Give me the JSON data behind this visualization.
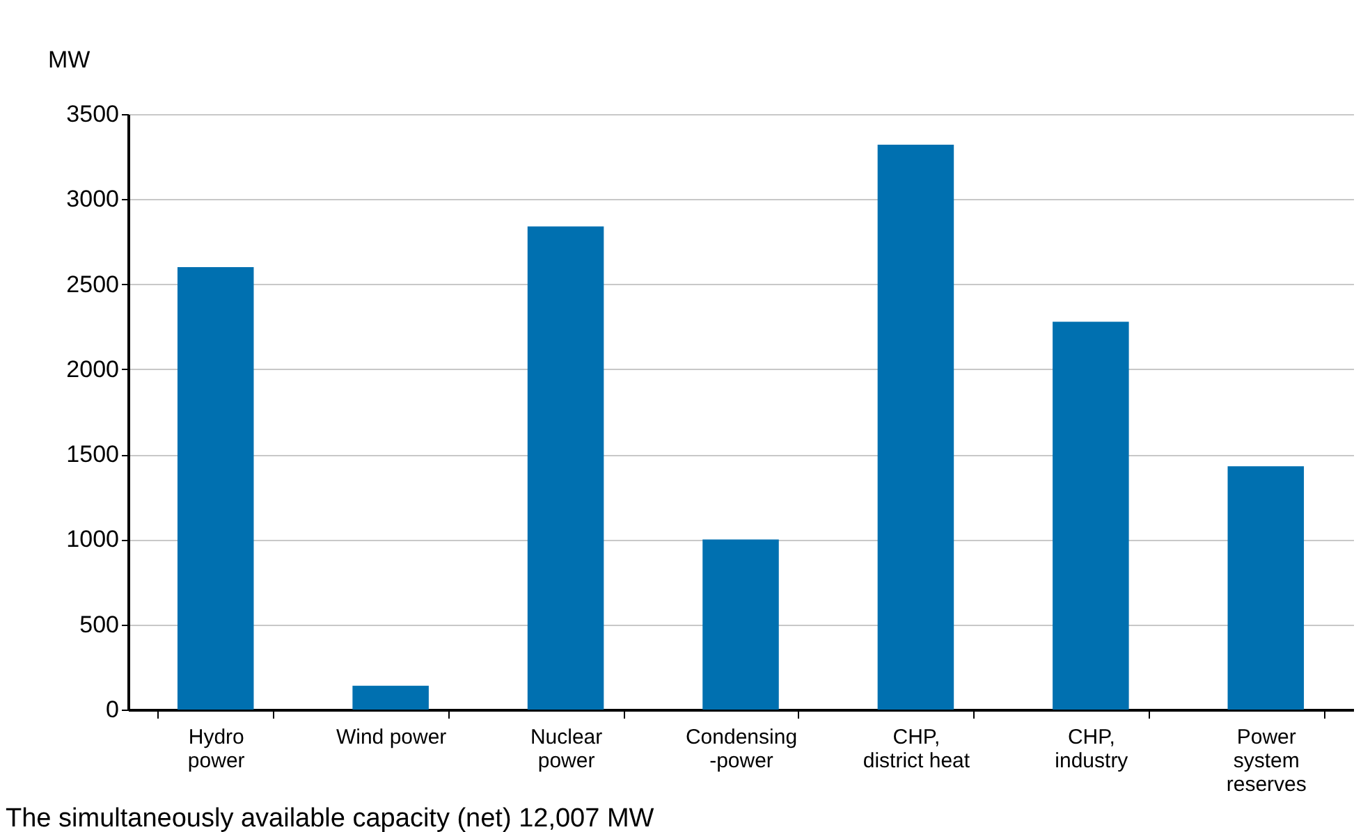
{
  "chart_data": {
    "type": "bar",
    "ylabel": "MW",
    "categories": [
      "Hydro\npower",
      "Wind power",
      "Nuclear\npower",
      "Condensing\n-power",
      "CHP,\ndistrict heat",
      "CHP,\nindustry",
      "Power\nsystem\nreserves"
    ],
    "values": [
      2600,
      140,
      2840,
      1000,
      3320,
      2280,
      1430
    ],
    "color": "#0070b0",
    "ylim": [
      0,
      3500
    ],
    "yticks": [
      0,
      500,
      1000,
      1500,
      2000,
      2500,
      3000,
      3500
    ],
    "grid": "y",
    "annotations": [
      "The simultaneously  available  capacity (net) 12,007 MW"
    ]
  }
}
